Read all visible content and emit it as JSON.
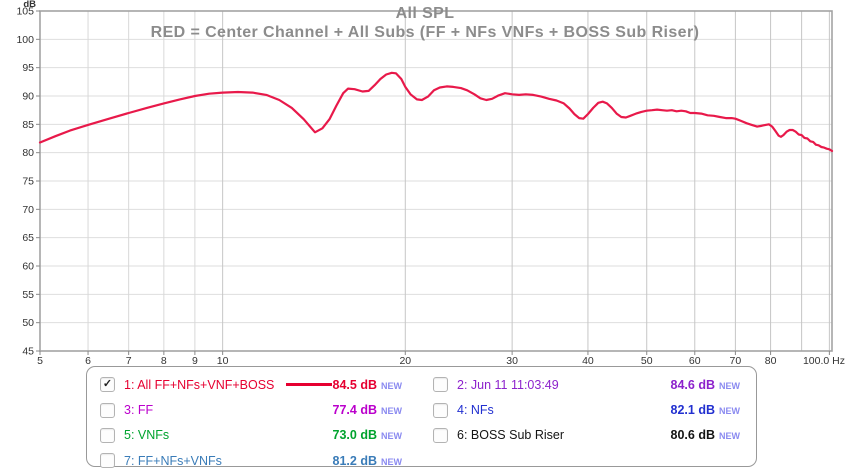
{
  "title": "All SPL",
  "subtitle": "RED = Center Channel + All Subs (FF + NFs VNFs + BOSS Sub Riser)",
  "chart_data": {
    "type": "line",
    "title": "All SPL",
    "xlabel": "Hz",
    "ylabel": "dB",
    "x_scale": "log",
    "xlim": [
      5,
      101
    ],
    "ylim": [
      45,
      105
    ],
    "y_unit_label": "dB",
    "grid": true,
    "gridlines_x": [
      6,
      7,
      8,
      9,
      10,
      20,
      30,
      40,
      50,
      60,
      70,
      80,
      90,
      100
    ],
    "gridlines_y": [
      50,
      55,
      60,
      65,
      70,
      75,
      80,
      85,
      90,
      95,
      100
    ],
    "x_tick_labels": [
      {
        "label": "5",
        "f": 5
      },
      {
        "label": "6",
        "f": 6
      },
      {
        "label": "7",
        "f": 7
      },
      {
        "label": "8",
        "f": 8
      },
      {
        "label": "9",
        "f": 9
      },
      {
        "label": "10",
        "f": 10
      },
      {
        "label": "20",
        "f": 20
      },
      {
        "label": "30",
        "f": 30
      },
      {
        "label": "40",
        "f": 40
      },
      {
        "label": "50",
        "f": 50
      },
      {
        "label": "60",
        "f": 60
      },
      {
        "label": "70",
        "f": 70
      },
      {
        "label": "80",
        "f": 80
      },
      {
        "label": "100.0 Hz",
        "f": 100
      }
    ],
    "y_tick_labels": [
      105,
      100,
      95,
      90,
      85,
      80,
      75,
      70,
      65,
      60,
      55,
      50,
      45
    ],
    "series": [
      {
        "name": "All FF+NFs+VNF+BOSS",
        "color": "#e8194a",
        "points": [
          [
            5,
            81.8
          ],
          [
            5.3,
            82.9
          ],
          [
            5.6,
            83.9
          ],
          [
            6,
            84.9
          ],
          [
            6.5,
            86.0
          ],
          [
            7,
            87.0
          ],
          [
            7.5,
            87.9
          ],
          [
            8,
            88.7
          ],
          [
            8.5,
            89.4
          ],
          [
            9,
            90.0
          ],
          [
            9.5,
            90.4
          ],
          [
            10,
            90.6
          ],
          [
            10.6,
            90.7
          ],
          [
            11.2,
            90.6
          ],
          [
            11.8,
            90.2
          ],
          [
            12.4,
            89.3
          ],
          [
            13,
            87.9
          ],
          [
            13.6,
            85.9
          ],
          [
            14.2,
            83.6
          ],
          [
            14.6,
            84.3
          ],
          [
            15,
            85.9
          ],
          [
            15.4,
            88.3
          ],
          [
            15.8,
            90.5
          ],
          [
            16.1,
            91.3
          ],
          [
            16.5,
            91.2
          ],
          [
            17,
            90.8
          ],
          [
            17.4,
            90.9
          ],
          [
            17.8,
            91.9
          ],
          [
            18.2,
            93.0
          ],
          [
            18.6,
            93.8
          ],
          [
            19,
            94.1
          ],
          [
            19.3,
            94.0
          ],
          [
            19.7,
            93.0
          ],
          [
            20,
            91.6
          ],
          [
            20.4,
            90.3
          ],
          [
            20.9,
            89.4
          ],
          [
            21.3,
            89.3
          ],
          [
            21.8,
            89.9
          ],
          [
            22.3,
            91.0
          ],
          [
            22.8,
            91.5
          ],
          [
            23.4,
            91.7
          ],
          [
            24,
            91.6
          ],
          [
            24.7,
            91.4
          ],
          [
            25.3,
            91.0
          ],
          [
            26,
            90.3
          ],
          [
            26.6,
            89.6
          ],
          [
            27.2,
            89.3
          ],
          [
            27.8,
            89.5
          ],
          [
            28.5,
            90.1
          ],
          [
            29.2,
            90.5
          ],
          [
            30,
            90.3
          ],
          [
            30.8,
            90.2
          ],
          [
            31.6,
            90.3
          ],
          [
            32.5,
            90.2
          ],
          [
            33.5,
            89.9
          ],
          [
            34.5,
            89.5
          ],
          [
            35.5,
            89.2
          ],
          [
            36.5,
            88.7
          ],
          [
            37.3,
            87.8
          ],
          [
            38,
            86.8
          ],
          [
            38.7,
            86.1
          ],
          [
            39.3,
            86.0
          ],
          [
            40,
            86.8
          ],
          [
            40.8,
            87.9
          ],
          [
            41.6,
            88.8
          ],
          [
            42.3,
            89.0
          ],
          [
            43,
            88.7
          ],
          [
            43.8,
            87.9
          ],
          [
            44.6,
            86.9
          ],
          [
            45.4,
            86.3
          ],
          [
            46.2,
            86.2
          ],
          [
            47,
            86.5
          ],
          [
            48,
            86.9
          ],
          [
            49,
            87.2
          ],
          [
            50,
            87.4
          ],
          [
            51,
            87.5
          ],
          [
            52,
            87.6
          ],
          [
            53,
            87.5
          ],
          [
            54,
            87.4
          ],
          [
            55,
            87.5
          ],
          [
            56,
            87.3
          ],
          [
            57,
            87.4
          ],
          [
            58,
            87.3
          ],
          [
            59,
            87.0
          ],
          [
            60,
            87.0
          ],
          [
            61.5,
            86.9
          ],
          [
            63,
            86.6
          ],
          [
            64.5,
            86.5
          ],
          [
            66,
            86.3
          ],
          [
            67.5,
            86.1
          ],
          [
            69,
            86.1
          ],
          [
            70,
            86.0
          ],
          [
            71.5,
            85.6
          ],
          [
            73,
            85.2
          ],
          [
            74.5,
            84.9
          ],
          [
            76,
            84.6
          ],
          [
            77,
            84.7
          ],
          [
            78.5,
            84.9
          ],
          [
            79.5,
            85.0
          ],
          [
            80.5,
            84.6
          ],
          [
            81.5,
            83.8
          ],
          [
            82.5,
            83.0
          ],
          [
            83.2,
            82.8
          ],
          [
            84,
            83.1
          ],
          [
            85,
            83.7
          ],
          [
            86,
            84.0
          ],
          [
            87,
            84.0
          ],
          [
            88,
            83.7
          ],
          [
            89,
            83.2
          ],
          [
            90,
            83.1
          ],
          [
            91,
            82.6
          ],
          [
            92,
            82.5
          ],
          [
            93,
            82.0
          ],
          [
            94,
            81.9
          ],
          [
            95,
            81.4
          ],
          [
            96,
            81.3
          ],
          [
            97,
            81.0
          ],
          [
            98,
            80.9
          ],
          [
            99,
            80.7
          ],
          [
            100,
            80.6
          ],
          [
            101,
            80.3
          ]
        ]
      }
    ]
  },
  "legend": {
    "new_tag": "NEW",
    "items": [
      {
        "check": "✓",
        "label": "1: All FF+NFs+VNF+BOSS",
        "value": "84.5 dB",
        "tag": "NEW",
        "color": "#e60031",
        "has_swatch": true
      },
      {
        "check": "",
        "label": "3: FF",
        "value": "77.4 dB",
        "tag": "NEW",
        "color": "#bb00cc"
      },
      {
        "check": "",
        "label": "5: VNFs",
        "value": "73.0 dB",
        "tag": "NEW",
        "color": "#00a32e"
      },
      {
        "check": "",
        "label": "7: FF+NFs+VNFs",
        "value": "81.2 dB",
        "tag": "NEW",
        "color": "#3a7cb8"
      },
      {
        "check": "",
        "label": "2: Jun 11 11:03:49",
        "value": "84.6 dB",
        "tag": "NEW",
        "color": "#8d22cc"
      },
      {
        "check": "",
        "label": "4: NFs",
        "value": "82.1 dB",
        "tag": "NEW",
        "color": "#2230d0"
      },
      {
        "check": "",
        "label": "6: BOSS Sub Riser",
        "value": "80.6 dB",
        "tag": "NEW",
        "color": "#141414"
      }
    ]
  }
}
